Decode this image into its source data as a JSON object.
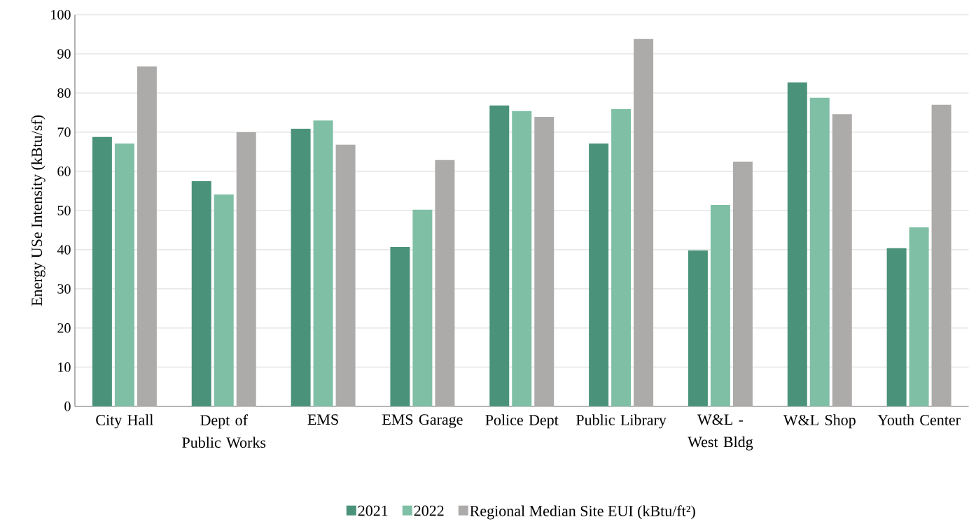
{
  "chart_data": {
    "type": "bar",
    "ylabel": "Energy USe Intensity (kBtu/sf)",
    "categories": [
      "City Hall",
      "Dept of Public Works",
      "EMS",
      "EMS Garage",
      "Police Dept",
      "Public Library",
      "W&L - West Bldg",
      "W&L Shop",
      "Youth Center"
    ],
    "series": [
      {
        "name": "2021",
        "color": "#4a937a",
        "values": [
          68.8,
          57.5,
          70.9,
          40.7,
          76.8,
          67.1,
          39.8,
          82.7,
          40.4
        ]
      },
      {
        "name": "2022",
        "color": "#7fbfa6",
        "values": [
          67.1,
          54.1,
          73.0,
          50.2,
          75.4,
          75.9,
          51.4,
          78.8,
          45.7
        ]
      },
      {
        "name": "Regional Median Site EUI (kBtu/ft²)",
        "color": "#adaaaa",
        "values": [
          86.8,
          70.0,
          66.8,
          62.9,
          73.9,
          93.8,
          62.5,
          74.6,
          77.0
        ]
      }
    ],
    "ylim": [
      0,
      100
    ],
    "yticks": [
      0,
      10,
      20,
      30,
      40,
      50,
      60,
      70,
      80,
      90,
      100
    ],
    "grid": "y",
    "legend": "bottom"
  }
}
